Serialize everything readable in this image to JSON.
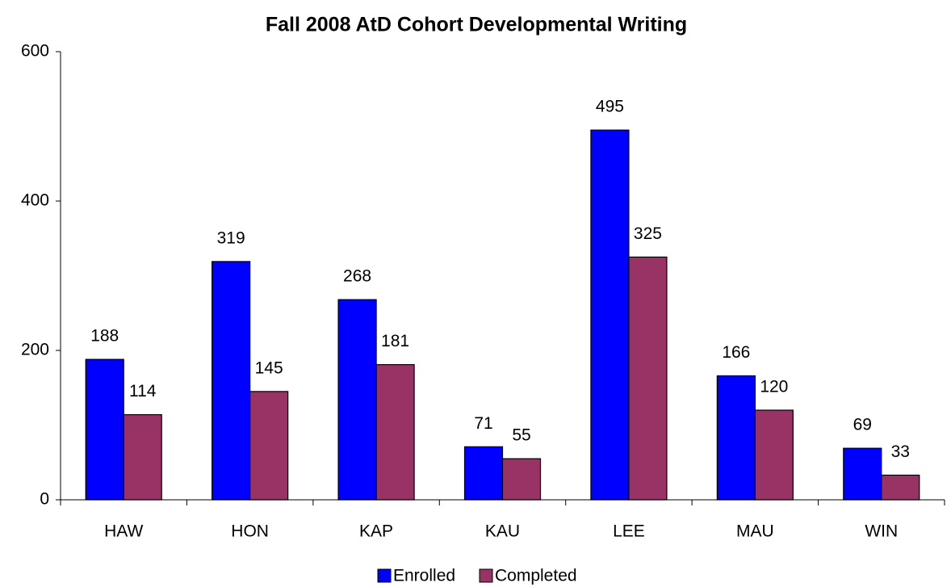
{
  "chart_data": {
    "type": "bar",
    "title": "Fall 2008 AtD Cohort Developmental Writing",
    "categories": [
      "HAW",
      "HON",
      "KAP",
      "KAU",
      "LEE",
      "MAU",
      "WIN"
    ],
    "series": [
      {
        "name": "Enrolled",
        "color": "#0000ff",
        "values": [
          188,
          319,
          268,
          71,
          495,
          166,
          69
        ]
      },
      {
        "name": "Completed",
        "color": "#993366",
        "values": [
          114,
          145,
          181,
          55,
          325,
          120,
          33
        ]
      }
    ],
    "ylim": [
      0,
      600
    ],
    "yticks": [
      0,
      200,
      400,
      600
    ],
    "grid": false,
    "legend": "bottom"
  }
}
